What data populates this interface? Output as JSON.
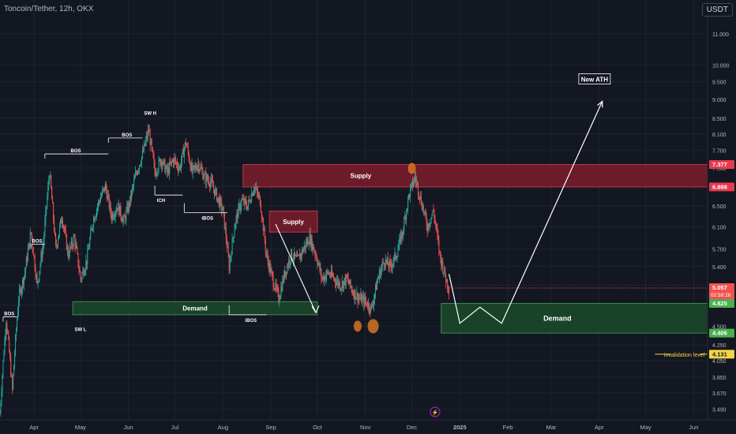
{
  "header": {
    "symbol": "Toncoin/Tether, 12h, OKX"
  },
  "currency_button": "USDT",
  "colors": {
    "background": "#131722",
    "up": "#26a69a",
    "down": "#ef5350",
    "supply_zone": "#7b1c2c",
    "demand_zone": "#1b4a2a",
    "invalidation": "#f5d547",
    "orange_marker": "#e07b22"
  },
  "chart_data": {
    "type": "candlestick",
    "title": "",
    "y_scale": "log",
    "y_ticks": [
      "11.000",
      "10.000",
      "9.500",
      "9.000",
      "8.500",
      "8.100",
      "7.700",
      "7.300",
      "6.900",
      "6.500",
      "6.100",
      "5.700",
      "5.400",
      "5.100",
      "4.800",
      "4.500",
      "4.250",
      "4.050",
      "3.850",
      "3.670",
      "3.490"
    ],
    "ylim": [
      3.38,
      12.2
    ],
    "x_ticks": [
      "Apr",
      "May",
      "Jun",
      "Jul",
      "Aug",
      "Sep",
      "Oct",
      "Nov",
      "Dec",
      "2025",
      "Feb",
      "Mar",
      "Apr",
      "May",
      "Jun"
    ],
    "xlim": [
      "2024-03-10",
      "2025-06-10"
    ],
    "price_path": [
      [
        "2024-03-10",
        3.45
      ],
      [
        "2024-03-14",
        4.6
      ],
      [
        "2024-03-18",
        3.7
      ],
      [
        "2024-03-22",
        4.9
      ],
      [
        "2024-03-26",
        5.3
      ],
      [
        "2024-03-30",
        6.0
      ],
      [
        "2024-04-03",
        5.1
      ],
      [
        "2024-04-07",
        5.8
      ],
      [
        "2024-04-11",
        7.2
      ],
      [
        "2024-04-15",
        5.7
      ],
      [
        "2024-04-19",
        6.3
      ],
      [
        "2024-04-23",
        5.6
      ],
      [
        "2024-04-27",
        5.9
      ],
      [
        "2024-05-01",
        5.2
      ],
      [
        "2024-05-05",
        5.5
      ],
      [
        "2024-05-09",
        6.2
      ],
      [
        "2024-05-13",
        6.6
      ],
      [
        "2024-05-17",
        6.9
      ],
      [
        "2024-05-21",
        6.3
      ],
      [
        "2024-05-25",
        6.5
      ],
      [
        "2024-05-29",
        6.2
      ],
      [
        "2024-06-02",
        6.6
      ],
      [
        "2024-06-06",
        7.2
      ],
      [
        "2024-06-10",
        7.6
      ],
      [
        "2024-06-14",
        8.2
      ],
      [
        "2024-06-18",
        7.2
      ],
      [
        "2024-06-22",
        7.5
      ],
      [
        "2024-06-26",
        7.2
      ],
      [
        "2024-06-30",
        7.5
      ],
      [
        "2024-07-04",
        7.3
      ],
      [
        "2024-07-08",
        7.9
      ],
      [
        "2024-07-12",
        7.2
      ],
      [
        "2024-07-16",
        7.4
      ],
      [
        "2024-07-20",
        7.1
      ],
      [
        "2024-07-24",
        7.0
      ],
      [
        "2024-07-28",
        6.7
      ],
      [
        "2024-08-01",
        6.4
      ],
      [
        "2024-08-05",
        5.4
      ],
      [
        "2024-08-09",
        6.2
      ],
      [
        "2024-08-13",
        6.6
      ],
      [
        "2024-08-17",
        6.5
      ],
      [
        "2024-08-21",
        6.9
      ],
      [
        "2024-08-25",
        6.6
      ],
      [
        "2024-08-29",
        5.6
      ],
      [
        "2024-09-02",
        5.2
      ],
      [
        "2024-09-06",
        4.9
      ],
      [
        "2024-09-10",
        5.3
      ],
      [
        "2024-09-14",
        5.6
      ],
      [
        "2024-09-18",
        5.5
      ],
      [
        "2024-09-22",
        5.7
      ],
      [
        "2024-09-26",
        5.9
      ],
      [
        "2024-09-30",
        5.6
      ],
      [
        "2024-10-04",
        5.2
      ],
      [
        "2024-10-08",
        5.3
      ],
      [
        "2024-10-12",
        5.2
      ],
      [
        "2024-10-16",
        5.1
      ],
      [
        "2024-10-20",
        5.2
      ],
      [
        "2024-10-24",
        5.0
      ],
      [
        "2024-10-28",
        4.9
      ],
      [
        "2024-11-01",
        4.85
      ],
      [
        "2024-11-05",
        4.75
      ],
      [
        "2024-11-09",
        5.2
      ],
      [
        "2024-11-13",
        5.5
      ],
      [
        "2024-11-17",
        5.4
      ],
      [
        "2024-11-21",
        5.6
      ],
      [
        "2024-11-25",
        6.0
      ],
      [
        "2024-11-29",
        6.7
      ],
      [
        "2024-12-03",
        7.1
      ],
      [
        "2024-12-07",
        6.6
      ],
      [
        "2024-12-11",
        6.1
      ],
      [
        "2024-12-15",
        6.4
      ],
      [
        "2024-12-19",
        5.6
      ],
      [
        "2024-12-23",
        5.2
      ],
      [
        "2024-12-25",
        5.06
      ]
    ],
    "zones": [
      {
        "label": "Supply",
        "kind": "supply",
        "x0": "2024-08-14",
        "x1": "2025-06-10",
        "y0": 6.888,
        "y1": 7.377
      },
      {
        "label": "Supply",
        "kind": "supply",
        "x0": "2024-08-31",
        "x1": "2024-10-01",
        "y0": 6.0,
        "y1": 6.4
      },
      {
        "label": "Demand",
        "kind": "demand",
        "x0": "2024-04-26",
        "x1": "2024-10-01",
        "y0": 4.66,
        "y1": 4.85
      },
      {
        "label": "Demand",
        "kind": "demand",
        "x0": "2024-12-20",
        "x1": "2025-06-10",
        "y0": 4.406,
        "y1": 4.825
      }
    ],
    "structure_labels": [
      {
        "text": "BOS",
        "x0": "2024-03-12",
        "x1": "2024-03-21",
        "y": 4.63,
        "label_x": "2024-03-16"
      },
      {
        "text": "BOS",
        "x0": "2024-03-30",
        "x1": "2024-04-08",
        "y": 5.78,
        "label_x": "2024-04-03"
      },
      {
        "text": "BOS",
        "x0": "2024-04-08",
        "x1": "2024-05-19",
        "y": 7.62,
        "label_x": "2024-04-28"
      },
      {
        "text": "BOS",
        "x0": "2024-05-19",
        "x1": "2024-06-10",
        "y": 8.0,
        "label_x": "2024-05-31"
      },
      {
        "text": "SW H",
        "x0": "",
        "x1": "",
        "y": 8.55,
        "label_x": "2024-06-15"
      },
      {
        "text": "ICH",
        "x0": "2024-06-18",
        "x1": "2024-07-06",
        "y": 6.72,
        "label_x": "2024-06-22"
      },
      {
        "text": "iBOS",
        "x0": "2024-07-07",
        "x1": "2024-08-04",
        "y": 6.37,
        "label_x": "2024-07-22"
      },
      {
        "text": "iBOS",
        "x0": "2024-08-05",
        "x1": "2024-08-29",
        "y": 4.66,
        "label_x": "2024-08-19"
      },
      {
        "text": "SW L",
        "x0": "",
        "x1": "",
        "y": 4.53,
        "label_x": "2024-05-01"
      }
    ],
    "projection": [
      [
        "2024-12-25",
        5.28
      ],
      [
        "2025-01-01",
        4.54
      ],
      [
        "2025-01-14",
        4.77
      ],
      [
        "2025-01-28",
        4.54
      ],
      [
        "2025-04-03",
        8.95
      ]
    ],
    "projection_label": "New ATH",
    "down_arrow": [
      [
        "2024-09-04",
        6.15
      ],
      [
        "2024-09-30",
        4.69
      ]
    ],
    "circles": [
      {
        "x": "2024-10-27",
        "y": 4.5
      },
      {
        "x": "2024-11-06",
        "y": 4.5
      },
      {
        "x": "2024-12-01",
        "y": 7.29
      }
    ],
    "invalidation": {
      "label": "invalidation level",
      "value": 4.131
    },
    "price_labels": [
      {
        "value": 7.377,
        "text": "7.377",
        "kind": "supply"
      },
      {
        "value": 6.888,
        "text": "6.888",
        "kind": "supply"
      },
      {
        "value": 5.057,
        "text": "5.057",
        "sub": "02:59:26",
        "kind": "current"
      },
      {
        "value": 4.825,
        "text": "4.825",
        "kind": "demand"
      },
      {
        "value": 4.406,
        "text": "4.406",
        "kind": "demand"
      },
      {
        "value": 4.131,
        "text": "4.131",
        "kind": "invalidation"
      }
    ]
  }
}
